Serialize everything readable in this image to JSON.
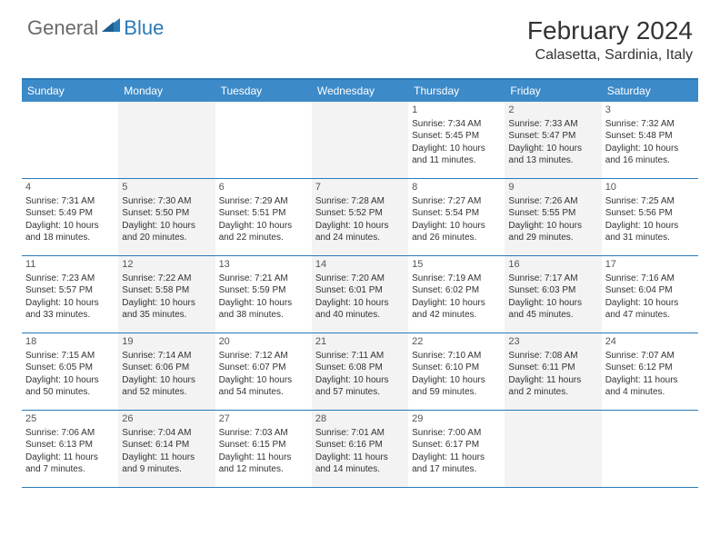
{
  "brand": {
    "general": "General",
    "blue": "Blue"
  },
  "title": "February 2024",
  "location": "Calasetta, Sardinia, Italy",
  "weekdays": [
    "Sunday",
    "Monday",
    "Tuesday",
    "Wednesday",
    "Thursday",
    "Friday",
    "Saturday"
  ],
  "colors": {
    "header_blue": "#3d8ac8",
    "border_blue": "#2a7ab8",
    "row_alt": "#f3f3f3",
    "text": "#333333"
  },
  "weeks": [
    [
      {
        "day": "",
        "sunrise": "",
        "sunset": "",
        "daylight1": "",
        "daylight2": ""
      },
      {
        "day": "",
        "sunrise": "",
        "sunset": "",
        "daylight1": "",
        "daylight2": ""
      },
      {
        "day": "",
        "sunrise": "",
        "sunset": "",
        "daylight1": "",
        "daylight2": ""
      },
      {
        "day": "",
        "sunrise": "",
        "sunset": "",
        "daylight1": "",
        "daylight2": ""
      },
      {
        "day": "1",
        "sunrise": "Sunrise: 7:34 AM",
        "sunset": "Sunset: 5:45 PM",
        "daylight1": "Daylight: 10 hours",
        "daylight2": "and 11 minutes."
      },
      {
        "day": "2",
        "sunrise": "Sunrise: 7:33 AM",
        "sunset": "Sunset: 5:47 PM",
        "daylight1": "Daylight: 10 hours",
        "daylight2": "and 13 minutes."
      },
      {
        "day": "3",
        "sunrise": "Sunrise: 7:32 AM",
        "sunset": "Sunset: 5:48 PM",
        "daylight1": "Daylight: 10 hours",
        "daylight2": "and 16 minutes."
      }
    ],
    [
      {
        "day": "4",
        "sunrise": "Sunrise: 7:31 AM",
        "sunset": "Sunset: 5:49 PM",
        "daylight1": "Daylight: 10 hours",
        "daylight2": "and 18 minutes."
      },
      {
        "day": "5",
        "sunrise": "Sunrise: 7:30 AM",
        "sunset": "Sunset: 5:50 PM",
        "daylight1": "Daylight: 10 hours",
        "daylight2": "and 20 minutes."
      },
      {
        "day": "6",
        "sunrise": "Sunrise: 7:29 AM",
        "sunset": "Sunset: 5:51 PM",
        "daylight1": "Daylight: 10 hours",
        "daylight2": "and 22 minutes."
      },
      {
        "day": "7",
        "sunrise": "Sunrise: 7:28 AM",
        "sunset": "Sunset: 5:52 PM",
        "daylight1": "Daylight: 10 hours",
        "daylight2": "and 24 minutes."
      },
      {
        "day": "8",
        "sunrise": "Sunrise: 7:27 AM",
        "sunset": "Sunset: 5:54 PM",
        "daylight1": "Daylight: 10 hours",
        "daylight2": "and 26 minutes."
      },
      {
        "day": "9",
        "sunrise": "Sunrise: 7:26 AM",
        "sunset": "Sunset: 5:55 PM",
        "daylight1": "Daylight: 10 hours",
        "daylight2": "and 29 minutes."
      },
      {
        "day": "10",
        "sunrise": "Sunrise: 7:25 AM",
        "sunset": "Sunset: 5:56 PM",
        "daylight1": "Daylight: 10 hours",
        "daylight2": "and 31 minutes."
      }
    ],
    [
      {
        "day": "11",
        "sunrise": "Sunrise: 7:23 AM",
        "sunset": "Sunset: 5:57 PM",
        "daylight1": "Daylight: 10 hours",
        "daylight2": "and 33 minutes."
      },
      {
        "day": "12",
        "sunrise": "Sunrise: 7:22 AM",
        "sunset": "Sunset: 5:58 PM",
        "daylight1": "Daylight: 10 hours",
        "daylight2": "and 35 minutes."
      },
      {
        "day": "13",
        "sunrise": "Sunrise: 7:21 AM",
        "sunset": "Sunset: 5:59 PM",
        "daylight1": "Daylight: 10 hours",
        "daylight2": "and 38 minutes."
      },
      {
        "day": "14",
        "sunrise": "Sunrise: 7:20 AM",
        "sunset": "Sunset: 6:01 PM",
        "daylight1": "Daylight: 10 hours",
        "daylight2": "and 40 minutes."
      },
      {
        "day": "15",
        "sunrise": "Sunrise: 7:19 AM",
        "sunset": "Sunset: 6:02 PM",
        "daylight1": "Daylight: 10 hours",
        "daylight2": "and 42 minutes."
      },
      {
        "day": "16",
        "sunrise": "Sunrise: 7:17 AM",
        "sunset": "Sunset: 6:03 PM",
        "daylight1": "Daylight: 10 hours",
        "daylight2": "and 45 minutes."
      },
      {
        "day": "17",
        "sunrise": "Sunrise: 7:16 AM",
        "sunset": "Sunset: 6:04 PM",
        "daylight1": "Daylight: 10 hours",
        "daylight2": "and 47 minutes."
      }
    ],
    [
      {
        "day": "18",
        "sunrise": "Sunrise: 7:15 AM",
        "sunset": "Sunset: 6:05 PM",
        "daylight1": "Daylight: 10 hours",
        "daylight2": "and 50 minutes."
      },
      {
        "day": "19",
        "sunrise": "Sunrise: 7:14 AM",
        "sunset": "Sunset: 6:06 PM",
        "daylight1": "Daylight: 10 hours",
        "daylight2": "and 52 minutes."
      },
      {
        "day": "20",
        "sunrise": "Sunrise: 7:12 AM",
        "sunset": "Sunset: 6:07 PM",
        "daylight1": "Daylight: 10 hours",
        "daylight2": "and 54 minutes."
      },
      {
        "day": "21",
        "sunrise": "Sunrise: 7:11 AM",
        "sunset": "Sunset: 6:08 PM",
        "daylight1": "Daylight: 10 hours",
        "daylight2": "and 57 minutes."
      },
      {
        "day": "22",
        "sunrise": "Sunrise: 7:10 AM",
        "sunset": "Sunset: 6:10 PM",
        "daylight1": "Daylight: 10 hours",
        "daylight2": "and 59 minutes."
      },
      {
        "day": "23",
        "sunrise": "Sunrise: 7:08 AM",
        "sunset": "Sunset: 6:11 PM",
        "daylight1": "Daylight: 11 hours",
        "daylight2": "and 2 minutes."
      },
      {
        "day": "24",
        "sunrise": "Sunrise: 7:07 AM",
        "sunset": "Sunset: 6:12 PM",
        "daylight1": "Daylight: 11 hours",
        "daylight2": "and 4 minutes."
      }
    ],
    [
      {
        "day": "25",
        "sunrise": "Sunrise: 7:06 AM",
        "sunset": "Sunset: 6:13 PM",
        "daylight1": "Daylight: 11 hours",
        "daylight2": "and 7 minutes."
      },
      {
        "day": "26",
        "sunrise": "Sunrise: 7:04 AM",
        "sunset": "Sunset: 6:14 PM",
        "daylight1": "Daylight: 11 hours",
        "daylight2": "and 9 minutes."
      },
      {
        "day": "27",
        "sunrise": "Sunrise: 7:03 AM",
        "sunset": "Sunset: 6:15 PM",
        "daylight1": "Daylight: 11 hours",
        "daylight2": "and 12 minutes."
      },
      {
        "day": "28",
        "sunrise": "Sunrise: 7:01 AM",
        "sunset": "Sunset: 6:16 PM",
        "daylight1": "Daylight: 11 hours",
        "daylight2": "and 14 minutes."
      },
      {
        "day": "29",
        "sunrise": "Sunrise: 7:00 AM",
        "sunset": "Sunset: 6:17 PM",
        "daylight1": "Daylight: 11 hours",
        "daylight2": "and 17 minutes."
      },
      {
        "day": "",
        "sunrise": "",
        "sunset": "",
        "daylight1": "",
        "daylight2": ""
      },
      {
        "day": "",
        "sunrise": "",
        "sunset": "",
        "daylight1": "",
        "daylight2": ""
      }
    ]
  ]
}
